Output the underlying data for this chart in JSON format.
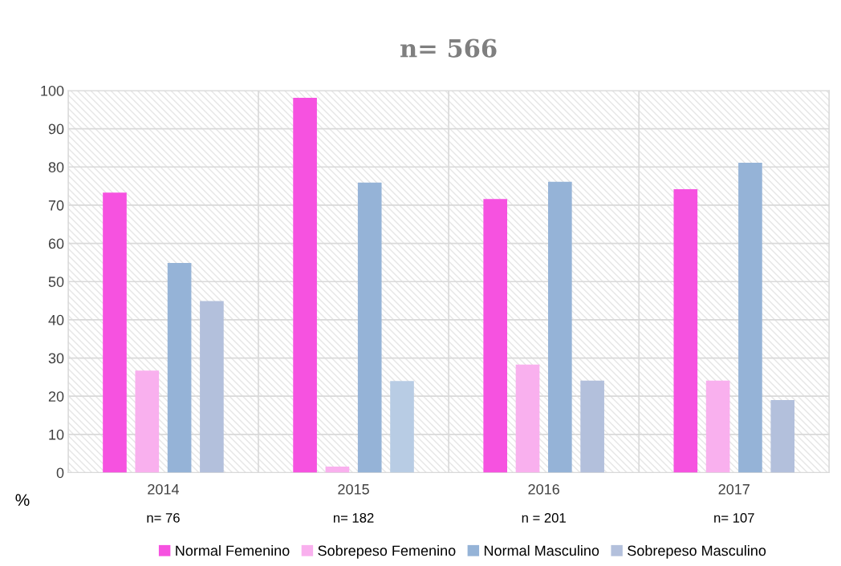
{
  "chart_data": {
    "type": "bar",
    "title": "n= 566",
    "categories": [
      "2014",
      "2015",
      "2016",
      "2017"
    ],
    "series": [
      {
        "name": "Normal Femenino",
        "color": "#f652e0",
        "values": [
          73.3,
          98.1,
          71.6,
          74.2
        ]
      },
      {
        "name": "Sobrepeso Femenino",
        "color": "#f9b0ee",
        "values": [
          26.7,
          1.6,
          28.3,
          24.1
        ]
      },
      {
        "name": "Normal Masculino",
        "color": "#95b3d7",
        "values": [
          54.9,
          75.9,
          76.1,
          81.1
        ]
      },
      {
        "name": "Sobrepeso Masculino",
        "color": "#b3c0dc",
        "colors": [
          "#b3c0dc",
          "#b8cce4",
          "#b3c0dc",
          "#b3c0dc"
        ],
        "values": [
          44.9,
          24.0,
          24.1,
          19.0
        ]
      }
    ],
    "ylim": [
      0,
      100
    ],
    "yticks": [
      0,
      10,
      20,
      30,
      40,
      50,
      60,
      70,
      80,
      90,
      100
    ],
    "annotations": [
      "%",
      "n= 76",
      "n= 182",
      "n = 201",
      "n= 107"
    ],
    "grid": true,
    "legend": "bottom"
  }
}
